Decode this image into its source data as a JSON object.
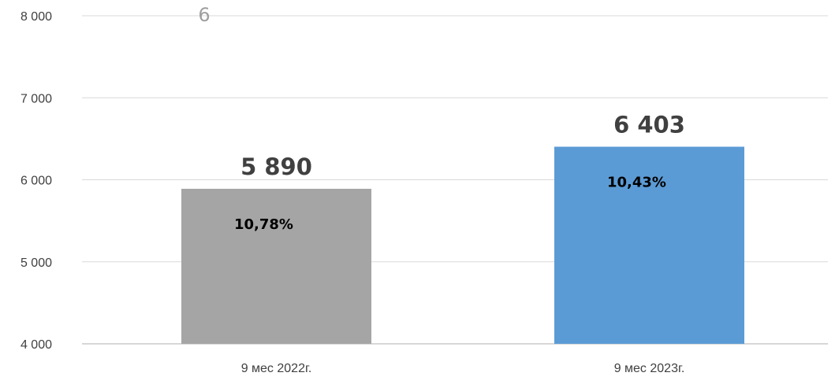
{
  "chart_data": {
    "type": "bar",
    "title": "",
    "xlabel": "",
    "ylabel": "",
    "ylim": [
      4000,
      8000
    ],
    "yticks": [
      4000,
      5000,
      6000,
      7000,
      8000
    ],
    "ytick_labels": [
      "4 000",
      "5 000",
      "6 000",
      "7 000",
      "8 000"
    ],
    "grid": true,
    "categories": [
      "9 мес 2022г.",
      "9 мес 2023г."
    ],
    "values": [
      5890,
      6403
    ],
    "value_labels": [
      "5 890",
      "6 403"
    ],
    "inner_labels": [
      "10,78%",
      "10,43%"
    ],
    "bar_colors": [
      "#a5a5a5",
      "#5b9bd5"
    ],
    "annotations": [
      "6"
    ]
  }
}
